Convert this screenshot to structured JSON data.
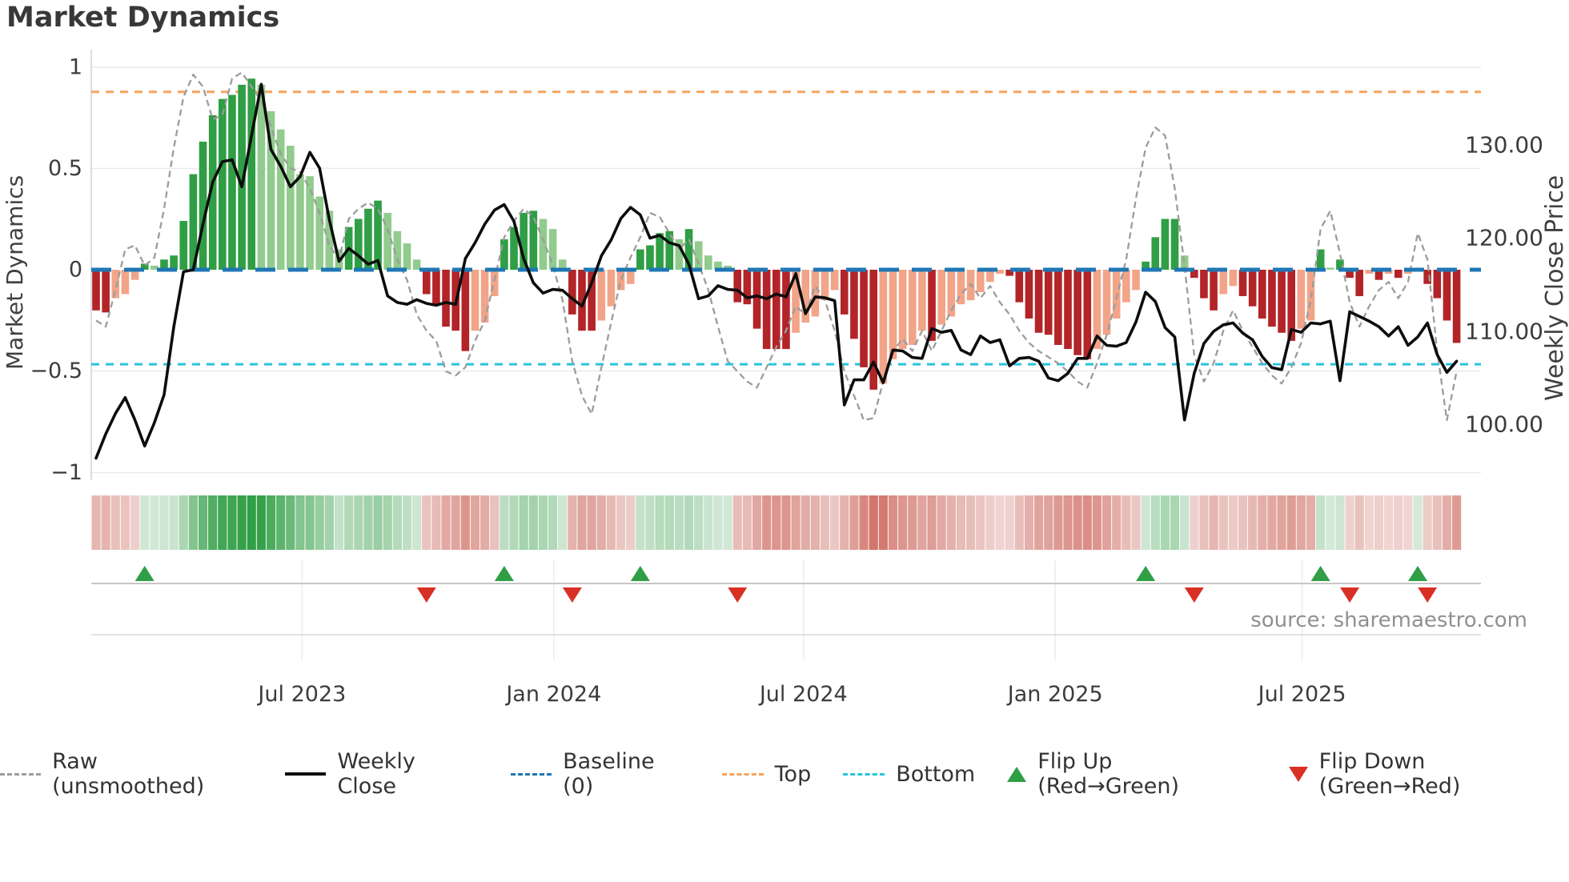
{
  "title": "Market Dynamics",
  "source": "source: sharemaestro.com",
  "left_axis": {
    "label": "Market Dynamics",
    "ticks": [
      "1",
      "0.5",
      "0",
      "−0.5",
      "−1"
    ]
  },
  "right_axis": {
    "label": "Weekly Close Price",
    "ticks": [
      "130.00",
      "120.00",
      "110.00",
      "100.00"
    ]
  },
  "x_axis": {
    "ticks": [
      "Jul 2023",
      "Jan 2024",
      "Jul 2024",
      "Jan 2025",
      "Jul 2025"
    ]
  },
  "colors": {
    "bar_green_strong": "#2f9e44",
    "bar_green_weak": "#91cb8d",
    "bar_red_strong": "#b22428",
    "bar_red_weak": "#f2a488",
    "baseline_blue": "#1f77b4",
    "top_orange": "#f7a35c",
    "bottom_cyan": "#29c4dd",
    "raw_gray": "#9c9c9c",
    "close_black": "#0d0d0d",
    "marker_green": "#2f9e44",
    "marker_red": "#d93025",
    "grid": "#e9e9f0",
    "tick_text": "#3c3c3c"
  },
  "legend": [
    {
      "label": "Raw (unsmoothed)",
      "swatch": "dashed-line",
      "color": "#9c9c9c"
    },
    {
      "label": "Weekly Close",
      "swatch": "solid-line",
      "color": "#0d0d0d"
    },
    {
      "label": "Baseline (0)",
      "swatch": "dashed-line",
      "color": "#1f77b4"
    },
    {
      "label": "Top",
      "swatch": "dotted-line",
      "color": "#f7a35c"
    },
    {
      "label": "Bottom",
      "swatch": "dotted-line",
      "color": "#29c4dd"
    },
    {
      "label": "Flip Up (Red→Green)",
      "swatch": "triangle-up",
      "color": "#2f9e44"
    },
    {
      "label": "Flip Down (Green→Red)",
      "swatch": "triangle-down",
      "color": "#d93025"
    }
  ],
  "chart_data": {
    "type": "bar+line",
    "title": "Market Dynamics",
    "x_unit": "week",
    "n_weeks": 141,
    "left_ylim": [
      -1,
      1
    ],
    "right_ylim_price_ticks": [
      130,
      120,
      110,
      100
    ],
    "baseline": 0,
    "top_level": 0.875,
    "bottom_level": -0.465,
    "x_tick_labels": [
      "Jul 2023",
      "Jan 2024",
      "Jul 2024",
      "Jan 2025",
      "Jul 2025"
    ],
    "x_tick_weeks": [
      21.2,
      47.1,
      72.8,
      98.7,
      124.1
    ],
    "series": [
      {
        "name": "Market Dynamics (smoothed bars)",
        "values": [
          -0.2,
          -0.21,
          -0.14,
          -0.12,
          -0.05,
          0.03,
          0.02,
          0.05,
          0.07,
          0.24,
          0.47,
          0.63,
          0.76,
          0.84,
          0.86,
          0.91,
          0.94,
          0.91,
          0.78,
          0.69,
          0.61,
          0.47,
          0.46,
          0.36,
          0.29,
          0.1,
          0.21,
          0.25,
          0.3,
          0.34,
          0.28,
          0.19,
          0.13,
          0.05,
          -0.12,
          -0.17,
          -0.28,
          -0.3,
          -0.4,
          -0.3,
          -0.26,
          -0.13,
          0.15,
          0.21,
          0.28,
          0.29,
          0.25,
          0.2,
          0.05,
          -0.22,
          -0.3,
          -0.3,
          -0.25,
          -0.18,
          -0.1,
          -0.07,
          0.1,
          0.12,
          0.18,
          0.19,
          0.15,
          0.2,
          0.14,
          0.07,
          0.04,
          0.02,
          -0.16,
          -0.17,
          -0.29,
          -0.39,
          -0.39,
          -0.39,
          -0.31,
          -0.26,
          -0.23,
          -0.15,
          -0.1,
          -0.22,
          -0.34,
          -0.48,
          -0.59,
          -0.56,
          -0.44,
          -0.39,
          -0.37,
          -0.3,
          -0.35,
          -0.27,
          -0.23,
          -0.17,
          -0.15,
          -0.11,
          -0.06,
          -0.02,
          -0.03,
          -0.16,
          -0.24,
          -0.31,
          -0.32,
          -0.37,
          -0.39,
          -0.42,
          -0.44,
          -0.39,
          -0.32,
          -0.24,
          -0.16,
          -0.1,
          0.04,
          0.16,
          0.25,
          0.25,
          0.07,
          -0.04,
          -0.14,
          -0.2,
          -0.12,
          -0.08,
          -0.13,
          -0.18,
          -0.24,
          -0.28,
          -0.31,
          -0.35,
          -0.29,
          -0.25,
          0.1,
          0.01,
          0.05,
          -0.04,
          -0.13,
          -0.02,
          -0.05,
          -0.02,
          -0.04,
          -0.02,
          0.01,
          -0.07,
          -0.14,
          -0.25,
          -0.36
        ]
      },
      {
        "name": "Raw (unsmoothed)",
        "values": [
          -0.25,
          -0.28,
          -0.1,
          0.1,
          0.12,
          0.02,
          0.06,
          0.3,
          0.6,
          0.85,
          0.96,
          0.9,
          0.74,
          0.76,
          0.94,
          0.97,
          0.9,
          0.83,
          0.7,
          0.57,
          0.5,
          0.48,
          0.4,
          0.28,
          0.12,
          0.05,
          0.25,
          0.3,
          0.33,
          0.3,
          0.2,
          0.05,
          -0.05,
          -0.22,
          -0.3,
          -0.35,
          -0.5,
          -0.52,
          -0.48,
          -0.35,
          -0.25,
          -0.05,
          0.16,
          0.24,
          0.3,
          0.26,
          0.15,
          0.02,
          -0.15,
          -0.45,
          -0.62,
          -0.71,
          -0.48,
          -0.26,
          -0.05,
          0.06,
          0.16,
          0.28,
          0.26,
          0.18,
          0.1,
          0.15,
          0.03,
          -0.1,
          -0.28,
          -0.45,
          -0.5,
          -0.55,
          -0.58,
          -0.48,
          -0.38,
          -0.3,
          -0.18,
          -0.22,
          -0.08,
          -0.15,
          -0.3,
          -0.5,
          -0.62,
          -0.74,
          -0.73,
          -0.55,
          -0.4,
          -0.34,
          -0.4,
          -0.3,
          -0.4,
          -0.3,
          -0.2,
          -0.12,
          -0.07,
          -0.14,
          -0.08,
          -0.16,
          -0.22,
          -0.3,
          -0.36,
          -0.4,
          -0.43,
          -0.46,
          -0.5,
          -0.55,
          -0.58,
          -0.46,
          -0.32,
          -0.14,
          0.05,
          0.35,
          0.6,
          0.7,
          0.66,
          0.4,
          0.02,
          -0.42,
          -0.55,
          -0.46,
          -0.3,
          -0.2,
          -0.3,
          -0.38,
          -0.46,
          -0.52,
          -0.56,
          -0.48,
          -0.36,
          -0.15,
          0.2,
          0.29,
          0.08,
          -0.16,
          -0.28,
          -0.18,
          -0.1,
          -0.06,
          -0.14,
          -0.06,
          0.18,
          0.05,
          -0.4,
          -0.74,
          -0.5
        ]
      },
      {
        "name": "Weekly Close",
        "values": [
          96.4,
          99.0,
          101.2,
          102.9,
          100.5,
          97.7,
          100.2,
          103.2,
          110.5,
          116.4,
          116.6,
          121.5,
          126.0,
          128.2,
          128.4,
          125.5,
          131.0,
          136.5,
          129.5,
          127.7,
          125.5,
          126.6,
          129.2,
          127.5,
          122.0,
          117.5,
          118.9,
          118.1,
          117.2,
          117.6,
          113.8,
          113.1,
          112.9,
          113.4,
          113.0,
          112.8,
          113.1,
          112.9,
          117.8,
          119.5,
          121.5,
          123.0,
          123.6,
          121.8,
          117.8,
          115.2,
          114.1,
          114.5,
          114.4,
          113.5,
          112.7,
          115.2,
          118.1,
          119.8,
          122.1,
          123.3,
          122.5,
          120.0,
          120.3,
          119.5,
          119.2,
          117.2,
          113.5,
          113.8,
          114.9,
          114.5,
          114.4,
          113.6,
          113.8,
          113.5,
          114.0,
          113.7,
          116.2,
          111.9,
          113.7,
          113.6,
          113.3,
          102.1,
          104.8,
          104.8,
          106.7,
          104.5,
          108.0,
          107.9,
          107.2,
          107.1,
          110.3,
          109.9,
          110.1,
          108.0,
          107.5,
          109.5,
          108.8,
          109.1,
          106.3,
          107.1,
          107.2,
          106.8,
          105.0,
          104.7,
          105.5,
          107.1,
          107.1,
          109.5,
          108.5,
          108.4,
          108.8,
          111.0,
          114.2,
          113.2,
          110.4,
          109.4,
          100.5,
          105.5,
          108.7,
          110.0,
          110.7,
          110.9,
          109.8,
          109.1,
          107.3,
          106.1,
          105.9,
          110.2,
          109.9,
          110.9,
          110.8,
          111.1,
          104.7,
          112.1,
          111.6,
          111.1,
          110.5,
          109.5,
          110.5,
          108.5,
          109.4,
          110.9,
          107.5,
          105.6,
          106.8
        ]
      }
    ],
    "flip_up_weeks": [
      5,
      42,
      56,
      108,
      126,
      136
    ],
    "flip_down_weeks": [
      34,
      49,
      66,
      113,
      129,
      137
    ],
    "heatmap": "strip below chart encodes smoothed values: green intensity for positive, red intensity for negative",
    "legend_position": "bottom",
    "grid": "horizontal only"
  }
}
